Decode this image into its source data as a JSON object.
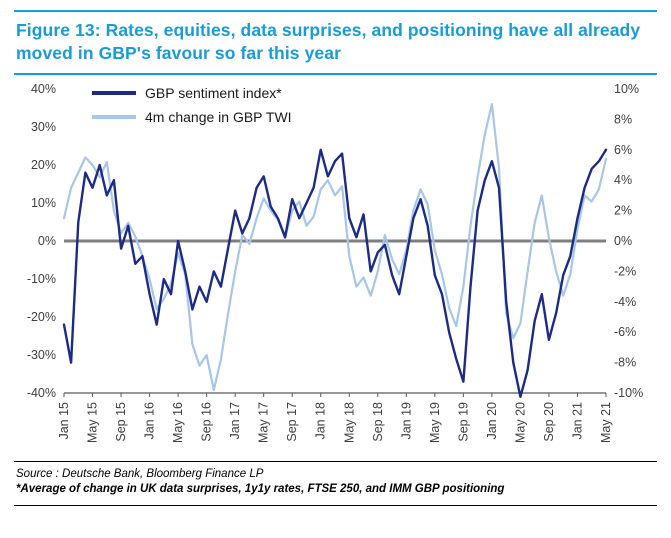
{
  "title": "Figure 13: Rates, equities, data surprises, and positioning have all already moved in GBP's favour so far this year",
  "footer": {
    "source": "Source : Deutsche Bank, Bloomberg Finance LP",
    "footnote": "*Average of change in UK data surprises, 1y1y rates, FTSE 250, and IMM GBP positioning"
  },
  "colors": {
    "accent": "#189CD8",
    "navy": "#1C2B88",
    "light_blue": "#A7C6E8",
    "zero_line": "#7F7F7F",
    "axis": "#595959",
    "axis_text": "#404040"
  },
  "chart_data": {
    "type": "line",
    "title": "",
    "x_range": [
      "Jan 2015",
      "May 2021"
    ],
    "grid": false,
    "legend_position": "top-left-inside",
    "x_tick_labels": [
      "Jan 15",
      "May 15",
      "Sep 15",
      "Jan 16",
      "May 16",
      "Sep 16",
      "Jan 17",
      "May 17",
      "Sep 17",
      "Jan 18",
      "May 18",
      "Sep 18",
      "Jan 19",
      "May 19",
      "Sep 19",
      "Jan 20",
      "May 20",
      "Sep 20",
      "Jan 21",
      "May 21"
    ],
    "left_axis": {
      "min": -40,
      "max": 40,
      "tick_values": [
        40,
        30,
        20,
        10,
        0,
        -10,
        -20,
        -30,
        -40
      ],
      "tick_labels": [
        "40%",
        "30%",
        "20%",
        "10%",
        "0%",
        "-10%",
        "-20%",
        "-30%",
        "-40%"
      ]
    },
    "right_axis": {
      "min": -10,
      "max": 10,
      "tick_values": [
        10,
        8,
        6,
        4,
        2,
        0,
        -2,
        -4,
        -6,
        -8,
        -10
      ],
      "tick_labels": [
        "10%",
        "8%",
        "6%",
        "4%",
        "2%",
        "0%",
        "-2%",
        "-4%",
        "-6%",
        "-8%",
        "-10%"
      ]
    },
    "zero_line": 0,
    "series": [
      {
        "name": "GBP sentiment index*",
        "axis": "left",
        "color": "#1C2B88",
        "width": 2.4,
        "values": [
          -22,
          -32,
          5,
          18,
          14,
          20,
          12,
          16,
          -2,
          4,
          -6,
          -4,
          -14,
          -22,
          -10,
          -14,
          0,
          -8,
          -18,
          -12,
          -16,
          -8,
          -12,
          -2,
          8,
          2,
          6,
          14,
          17,
          9,
          6,
          1,
          11,
          6,
          10,
          14,
          24,
          17,
          21,
          23,
          6,
          1,
          7,
          -8,
          -3,
          -1,
          -9,
          -14,
          -4,
          6,
          11,
          4,
          -9,
          -14,
          -24,
          -31,
          -37,
          -12,
          8,
          16,
          21,
          14,
          -16,
          -32,
          -41,
          -34,
          -21,
          -14,
          -26,
          -19,
          -9,
          -4,
          6,
          14,
          19,
          21,
          24
        ]
      },
      {
        "name": "4m change in GBP TWI",
        "axis": "right",
        "color": "#A7C6E8",
        "width": 2.2,
        "values": [
          1.5,
          3.5,
          4.5,
          5.5,
          5.0,
          4.2,
          5.2,
          2.0,
          0.5,
          1.2,
          0.3,
          -1.0,
          -2.5,
          -4.5,
          -3.8,
          -2.8,
          -0.8,
          -2.2,
          -6.8,
          -8.2,
          -7.5,
          -9.8,
          -7.8,
          -4.8,
          -2.0,
          0.4,
          -0.2,
          1.5,
          2.8,
          2.0,
          1.4,
          0.2,
          2.0,
          2.6,
          1.0,
          1.6,
          3.4,
          4.0,
          3.0,
          3.6,
          -1.0,
          -3.0,
          -2.4,
          -3.6,
          -2.0,
          0.4,
          -1.2,
          -2.2,
          -0.6,
          2.0,
          3.4,
          2.4,
          -0.6,
          -2.2,
          -4.4,
          -5.6,
          -3.0,
          1.0,
          4.2,
          7.0,
          9.0,
          4.8,
          -4.8,
          -6.4,
          -5.4,
          -2.0,
          1.2,
          3.0,
          0.2,
          -2.0,
          -3.6,
          -2.2,
          0.8,
          3.0,
          2.6,
          3.4,
          5.4
        ]
      }
    ]
  }
}
